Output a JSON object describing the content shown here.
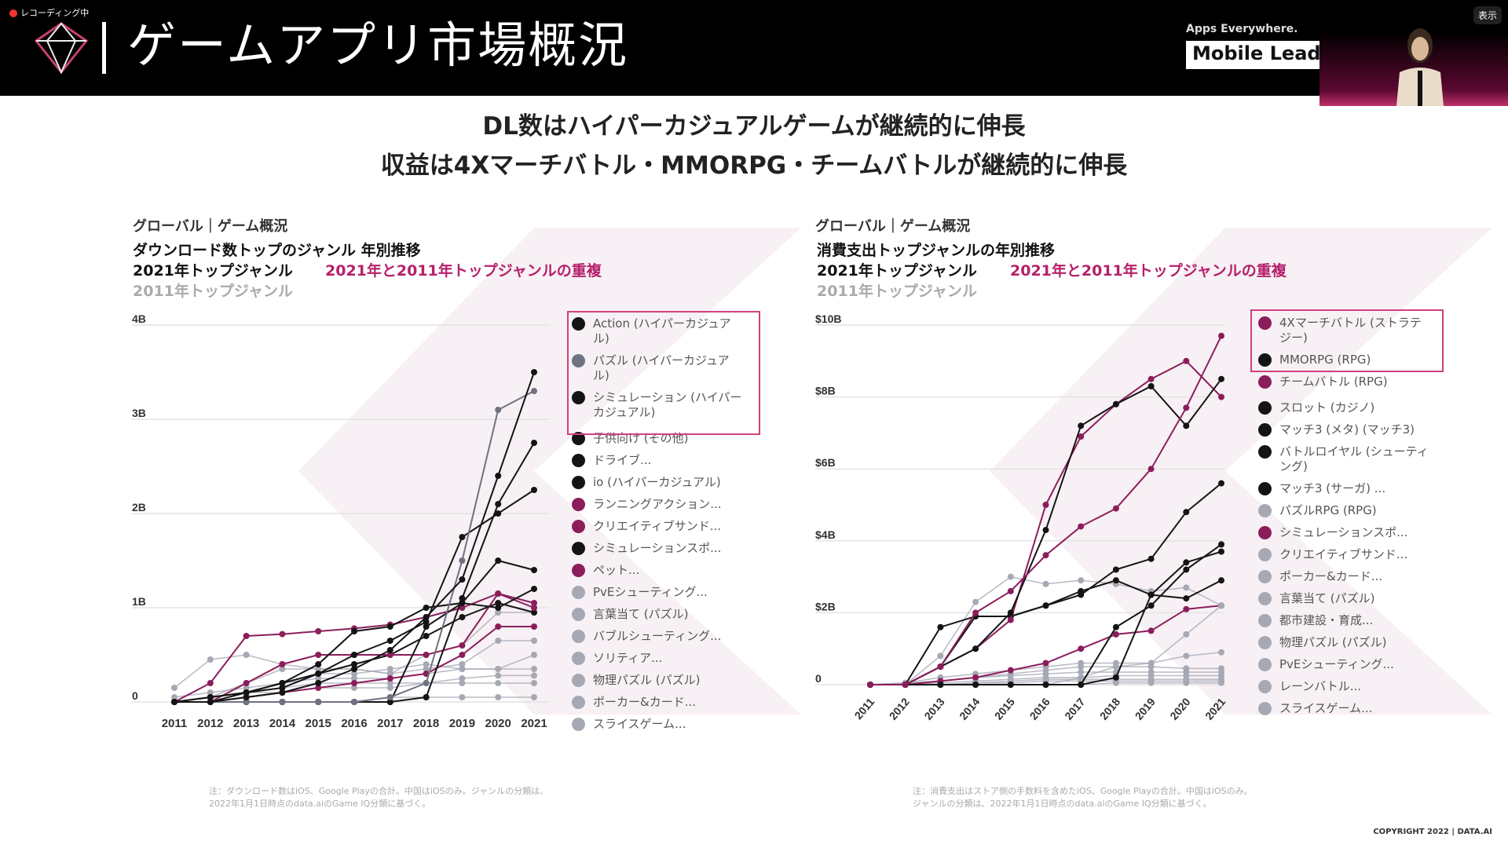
{
  "recording": {
    "label": "レコーディング中"
  },
  "header": {
    "title": "ゲームアプリ市場概況",
    "tagline": "Apps Everywhere.",
    "banner": "Mobile Lead"
  },
  "camera": {
    "show_label": "表示"
  },
  "headline": [
    "DL数はハイパーカジュアルゲームが継続的に伸長",
    "収益は4Xマーチバトル・MMORPG・チームバトルが継続的に伸長"
  ],
  "colors": {
    "black": "#141414",
    "magenta": "#8c1d5c",
    "gray": "#6f7282",
    "light": "#a6a9b4",
    "highlight": "#d0407f"
  },
  "left": {
    "section": "グローバル｜ゲーム概況",
    "title": "ダウンロード数トップのジャンル 年別推移",
    "label_2021": "2021年トップジャンル",
    "label_overlap": "2021年と2011年トップジャンルの重複",
    "label_2011": "2011年トップジャンル",
    "note": [
      "注：ダウンロード数はiOS、Google Playの合計。中国はiOSのみ。ジャンルの分類は、",
      "2022年1月1日時点のdata.aiのGame IQ分類に基づく。"
    ]
  },
  "right": {
    "section": "グローバル｜ゲーム概況",
    "title": "消費支出トップジャンルの年別推移",
    "label_2021": "2021年トップジャンル",
    "label_overlap": "2021年と2011年トップジャンルの重複",
    "label_2011": "2011年トップジャンル",
    "note": [
      "注：消費支出はストア側の手数料を含めたiOS、Google Playの合計。中国はiOSのみ。",
      "ジャンルの分類は、2022年1月1日時点のdata.aiのGame IQ分類に基づく。"
    ]
  },
  "copyright": "COPYRIGHT 2022 | DATA.AI",
  "chart_data": [
    {
      "type": "line",
      "title": "ダウンロード数トップのジャンル 年別推移",
      "ylabel": "",
      "xlabel": "",
      "ylim": [
        0,
        4
      ],
      "yticks": [
        {
          "v": 0,
          "label": "0"
        },
        {
          "v": 1,
          "label": "1B"
        },
        {
          "v": 2,
          "label": "2B"
        },
        {
          "v": 3,
          "label": "3B"
        },
        {
          "v": 4,
          "label": "4B"
        }
      ],
      "x": [
        "2011",
        "2012",
        "2013",
        "2014",
        "2015",
        "2016",
        "2017",
        "2018",
        "2019",
        "2020",
        "2021"
      ],
      "legend": "right",
      "highlight_count": 3,
      "series": [
        {
          "name": "Action (ハイパーカジュアル)",
          "color": "black",
          "values": [
            0,
            0,
            0.05,
            0.1,
            0.2,
            0.35,
            0.55,
            0.9,
            1.3,
            2.4,
            3.5
          ]
        },
        {
          "name": "パズル (ハイパーカジュアル)",
          "color": "gray",
          "values": [
            0,
            0,
            0,
            0,
            0,
            0,
            0.05,
            0.2,
            1.5,
            3.1,
            3.3
          ]
        },
        {
          "name": "シミュレーション (ハイパーカジュアル)",
          "color": "black",
          "values": [
            0,
            0,
            0,
            0,
            0,
            0,
            0,
            0.05,
            1.1,
            2.1,
            2.75
          ]
        },
        {
          "name": "子供向け (その他)",
          "color": "black",
          "values": [
            0,
            0.05,
            0.1,
            0.15,
            0.3,
            0.5,
            0.65,
            0.85,
            1.75,
            2.0,
            2.25
          ]
        },
        {
          "name": "ドライブ...",
          "color": "black",
          "values": [
            0,
            0.05,
            0.1,
            0.2,
            0.4,
            0.75,
            0.8,
            1.0,
            1.05,
            1.5,
            1.4
          ]
        },
        {
          "name": "io (ハイパーカジュアル)",
          "color": "black",
          "values": [
            0,
            0,
            0,
            0,
            0,
            0,
            0,
            0.8,
            1.05,
            1.0,
            1.2
          ]
        },
        {
          "name": "ランニングアクション...",
          "color": "magenta",
          "values": [
            0,
            0.2,
            0.7,
            0.72,
            0.75,
            0.78,
            0.82,
            0.9,
            1.0,
            1.15,
            1.05
          ]
        },
        {
          "name": "クリエイティブサンド...",
          "color": "magenta",
          "values": [
            0,
            0,
            0.2,
            0.4,
            0.5,
            0.5,
            0.5,
            0.5,
            0.6,
            1.15,
            1.0
          ]
        },
        {
          "name": "シミュレーションスポ...",
          "color": "black",
          "values": [
            0,
            0,
            0.1,
            0.2,
            0.3,
            0.4,
            0.5,
            0.7,
            0.9,
            1.05,
            0.95
          ]
        },
        {
          "name": "ペット...",
          "color": "magenta",
          "values": [
            0,
            0,
            0.05,
            0.1,
            0.15,
            0.2,
            0.25,
            0.3,
            0.5,
            0.8,
            0.8
          ]
        },
        {
          "name": "PvEシューティング...",
          "color": "light",
          "values": [
            0.15,
            0.45,
            0.5,
            0.4,
            0.35,
            0.35,
            0.3,
            0.35,
            0.4,
            0.65,
            0.65
          ]
        },
        {
          "name": "言葉当て (パズル)",
          "color": "light",
          "values": [
            0,
            0.05,
            0.2,
            0.35,
            0.35,
            0.35,
            0.3,
            0.5,
            0.6,
            0.95,
            0.95
          ]
        },
        {
          "name": "バブルシューティング...",
          "color": "light",
          "values": [
            0,
            0.05,
            0.1,
            0.15,
            0.3,
            0.3,
            0.35,
            0.4,
            0.35,
            0.35,
            0.5
          ]
        },
        {
          "name": "ソリティア...",
          "color": "light",
          "values": [
            0.05,
            0.1,
            0.15,
            0.2,
            0.25,
            0.25,
            0.25,
            0.3,
            0.35,
            0.35,
            0.35
          ]
        },
        {
          "name": "物理パズル (パズル)",
          "color": "light",
          "values": [
            0,
            0.05,
            0.1,
            0.15,
            0.2,
            0.2,
            0.2,
            0.2,
            0.25,
            0.28,
            0.28
          ]
        },
        {
          "name": "ポーカー&カード...",
          "color": "light",
          "values": [
            0,
            0.05,
            0.1,
            0.1,
            0.15,
            0.15,
            0.15,
            0.2,
            0.2,
            0.2,
            0.2
          ]
        },
        {
          "name": "スライスゲーム...",
          "color": "light",
          "values": [
            0,
            0,
            0,
            0,
            0,
            0,
            0.05,
            0.05,
            0.05,
            0.05,
            0.05
          ]
        }
      ]
    },
    {
      "type": "line",
      "title": "消費支出トップジャンルの年別推移",
      "ylabel": "",
      "xlabel": "",
      "ylim": [
        0,
        10
      ],
      "yticks": [
        {
          "v": 0,
          "label": "0"
        },
        {
          "v": 2,
          "label": "$2B"
        },
        {
          "v": 4,
          "label": "$4B"
        },
        {
          "v": 6,
          "label": "$6B"
        },
        {
          "v": 8,
          "label": "$8B"
        },
        {
          "v": 10,
          "label": "$10B"
        }
      ],
      "x": [
        "2011",
        "2012",
        "2013",
        "2014",
        "2015",
        "2016",
        "2017",
        "2018",
        "2019",
        "2020",
        "2021"
      ],
      "legend": "right",
      "highlight_count": 3,
      "series": [
        {
          "name": "4Xマーチバトル (ストラテジー)",
          "color": "magenta",
          "values": [
            0,
            0,
            0.5,
            2,
            2.6,
            3.6,
            4.4,
            4.9,
            6,
            7.7,
            9.7
          ]
        },
        {
          "name": "MMORPG (RPG)",
          "color": "black",
          "values": [
            0,
            0,
            0.5,
            1,
            2,
            4.3,
            7.2,
            7.8,
            8.3,
            7.2,
            8.5
          ]
        },
        {
          "name": "チームバトル (RPG)",
          "color": "magenta",
          "values": [
            0,
            0,
            0.5,
            1,
            1.8,
            5,
            6.9,
            7.8,
            8.5,
            9,
            8
          ]
        },
        {
          "name": "スロット (カジノ)",
          "color": "black",
          "values": [
            0,
            0,
            0.5,
            1.9,
            1.9,
            2.2,
            2.5,
            3.2,
            3.5,
            4.8,
            5.6
          ]
        },
        {
          "name": "マッチ3 (メタ) (マッチ3)",
          "color": "black",
          "values": [
            0,
            0,
            0,
            0,
            0,
            0,
            0,
            1.6,
            2.2,
            3.2,
            3.9
          ]
        },
        {
          "name": "バトルロイヤル (シューティング)",
          "color": "black",
          "values": [
            0,
            0,
            0,
            0,
            0,
            0,
            0,
            0.2,
            2.5,
            3.4,
            3.7
          ]
        },
        {
          "name": "マッチ3 (サーガ) ...",
          "color": "black",
          "values": [
            0,
            0,
            1.6,
            1.9,
            1.9,
            2.2,
            2.6,
            2.9,
            2.5,
            2.4,
            2.9
          ]
        },
        {
          "name": "パズルRPG (RPG)",
          "color": "light",
          "values": [
            0,
            0,
            0.8,
            2.3,
            3,
            2.8,
            2.9,
            2.8,
            2.6,
            2.7,
            2.2
          ]
        },
        {
          "name": "シミュレーションスポ...",
          "color": "magenta",
          "values": [
            0,
            0,
            0.1,
            0.2,
            0.4,
            0.6,
            1.0,
            1.4,
            1.5,
            2.1,
            2.2
          ]
        },
        {
          "name": "クリエイティブサンド...",
          "color": "light",
          "values": [
            0,
            0,
            0,
            0,
            0,
            0,
            0.2,
            0.5,
            0.6,
            1.4,
            2.2
          ]
        },
        {
          "name": "ポーカー&カード...",
          "color": "light",
          "values": [
            0,
            0.05,
            0.2,
            0.3,
            0.4,
            0.5,
            0.6,
            0.6,
            0.6,
            0.8,
            0.9
          ]
        },
        {
          "name": "言葉当て (パズル)",
          "color": "light",
          "values": [
            0,
            0,
            0.1,
            0.2,
            0.3,
            0.4,
            0.5,
            0.5,
            0.5,
            0.45,
            0.45
          ]
        },
        {
          "name": "都市建設・育成...",
          "color": "light",
          "values": [
            0,
            0.05,
            0.1,
            0.2,
            0.25,
            0.3,
            0.35,
            0.35,
            0.35,
            0.35,
            0.35
          ]
        },
        {
          "name": "物理パズル (パズル)",
          "color": "light",
          "values": [
            0,
            0,
            0.05,
            0.1,
            0.15,
            0.2,
            0.2,
            0.25,
            0.25,
            0.25,
            0.25
          ]
        },
        {
          "name": "PvEシューティング...",
          "color": "light",
          "values": [
            0,
            0,
            0,
            0.05,
            0.1,
            0.15,
            0.15,
            0.15,
            0.15,
            0.15,
            0.15
          ]
        },
        {
          "name": "レーンバトル...",
          "color": "light",
          "values": [
            0,
            0,
            0,
            0.05,
            0.05,
            0.1,
            0.1,
            0.1,
            0.1,
            0.1,
            0.1
          ]
        },
        {
          "name": "スライスゲーム...",
          "color": "light",
          "values": [
            0,
            0,
            0,
            0,
            0,
            0,
            0,
            0.05,
            0.05,
            0.05,
            0.05
          ]
        }
      ]
    }
  ]
}
